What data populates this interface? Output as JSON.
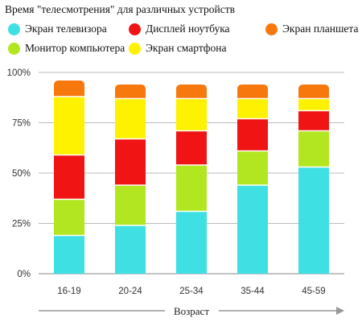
{
  "chart_data": {
    "type": "bar",
    "stacked": true,
    "title": "Время \"телесмотрения\" для различных устройств",
    "xlabel": "Возраст",
    "ylabel": "",
    "ylim": [
      0,
      100
    ],
    "yticks": [
      "0%",
      "25%",
      "50%",
      "75%",
      "100%"
    ],
    "categories": [
      "16-19",
      "20-24",
      "25-34",
      "35-44",
      "45-59"
    ],
    "series": [
      {
        "name": "Экран телевизора",
        "color": "#3fe0e3",
        "values": [
          19,
          24,
          31,
          44,
          53
        ]
      },
      {
        "name": "Монитор компьютера",
        "color": "#b2e620",
        "values": [
          18,
          20,
          23,
          17,
          18
        ]
      },
      {
        "name": "Дисплей ноутбука",
        "color": "#f01414",
        "values": [
          22,
          23,
          17,
          16,
          10
        ]
      },
      {
        "name": "Экран смартфона",
        "color": "#fff200",
        "values": [
          29,
          20,
          16,
          10,
          6
        ]
      },
      {
        "name": "Экран планшета",
        "color": "#f7790e",
        "values": [
          8,
          7,
          7,
          7,
          7
        ]
      }
    ],
    "grid": true,
    "legend_position": "top"
  }
}
